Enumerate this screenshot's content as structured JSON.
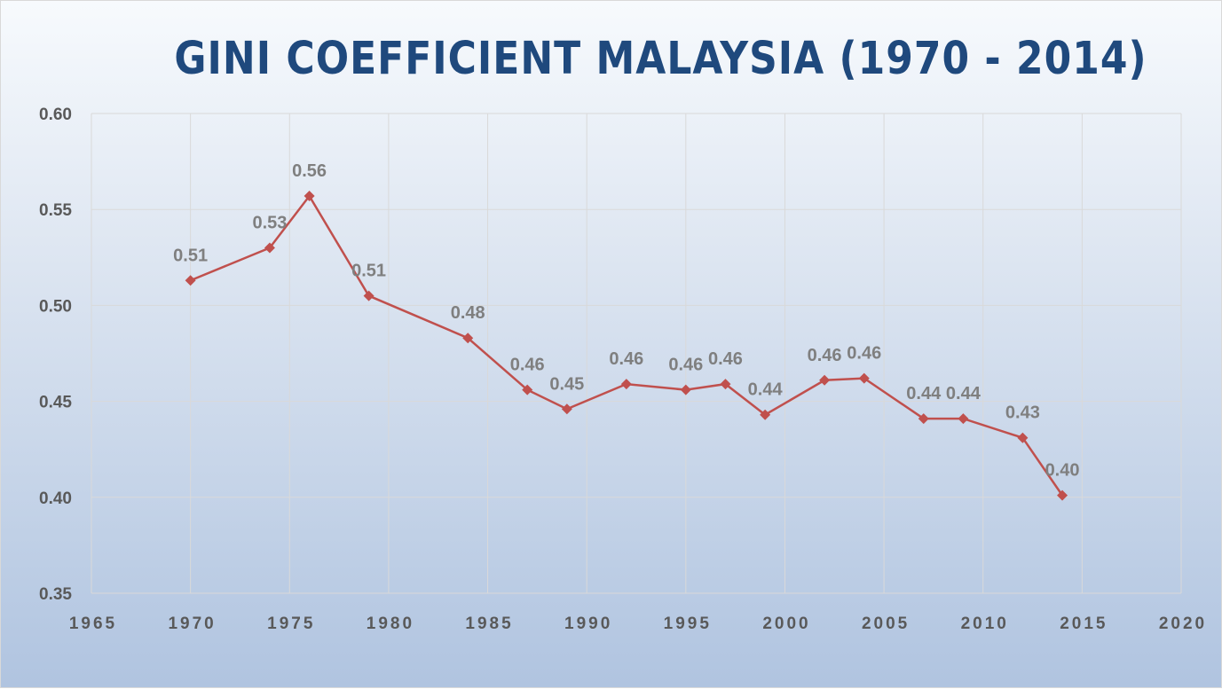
{
  "chart_data": {
    "type": "line",
    "title": "GINI COEFFICIENT MALAYSIA (1970 - 2014)",
    "xlabel": "",
    "ylabel": "",
    "xlim": [
      1965,
      2020
    ],
    "ylim": [
      0.35,
      0.6
    ],
    "x_ticks": [
      1965,
      1970,
      1975,
      1980,
      1985,
      1990,
      1995,
      2000,
      2005,
      2010,
      2015,
      2020
    ],
    "y_ticks": [
      "0.35",
      "0.40",
      "0.45",
      "0.50",
      "0.55",
      "0.60"
    ],
    "grid": true,
    "series_color": "#c0504d",
    "marker": "diamond",
    "x": [
      1970,
      1974,
      1976,
      1979,
      1984,
      1987,
      1989,
      1992,
      1995,
      1997,
      1999,
      2002,
      2004,
      2007,
      2009,
      2012,
      2014
    ],
    "y": [
      0.513,
      0.53,
      0.557,
      0.505,
      0.483,
      0.456,
      0.446,
      0.459,
      0.456,
      0.459,
      0.443,
      0.461,
      0.462,
      0.441,
      0.441,
      0.431,
      0.401
    ],
    "data_labels": [
      "0.51",
      "0.53",
      "0.56",
      "0.51",
      "0.48",
      "0.46",
      "0.45",
      "0.46",
      "0.46",
      "0.46",
      "0.44",
      "0.46",
      "0.46",
      "0.44",
      "0.44",
      "0.43",
      "0.40"
    ]
  }
}
